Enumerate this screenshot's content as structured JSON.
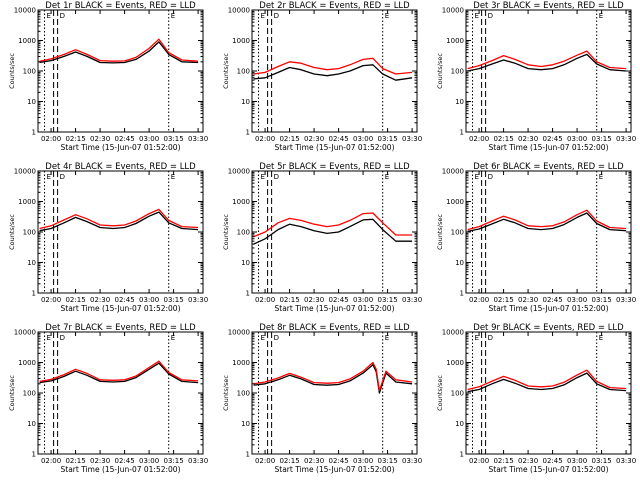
{
  "chart_data": [
    {
      "type": "line",
      "title": "Det 1r BLACK = Events, RED = LLD",
      "xlabel": "Start Time (15-Jun-07 01:52:00)",
      "ylabel": "Counts/sec",
      "yscale": "log",
      "ylim": [
        1,
        10000
      ],
      "x_ticks": [
        "02:00",
        "02:15",
        "02:30",
        "02:45",
        "03:00",
        "03:15",
        "03:30"
      ],
      "y_ticks": [
        "1",
        "10",
        "100",
        "1000",
        "10000"
      ],
      "markers": [
        {
          "label": "E",
          "time": "01:56"
        },
        {
          "label": "D",
          "time": "02:04"
        },
        {
          "label": "E",
          "time": "03:12"
        }
      ],
      "x": [
        "01:53",
        "02:00",
        "02:08",
        "02:15",
        "02:22",
        "02:30",
        "02:38",
        "02:45",
        "02:52",
        "03:00",
        "03:06",
        "03:12",
        "03:20",
        "03:30"
      ],
      "series": [
        {
          "name": "Events",
          "color": "#000000",
          "values": [
            190,
            220,
            300,
            420,
            300,
            190,
            185,
            190,
            240,
            450,
            900,
            350,
            200,
            190
          ]
        },
        {
          "name": "LLD",
          "color": "#ff0000",
          "values": [
            210,
            250,
            350,
            500,
            350,
            220,
            210,
            215,
            280,
            550,
            1100,
            400,
            230,
            210
          ]
        }
      ]
    },
    {
      "type": "line",
      "title": "Det 2r BLACK = Events, RED = LLD",
      "xlabel": "Start Time (15-Jun-07 01:52:00)",
      "ylabel": "Counts/sec",
      "yscale": "log",
      "ylim": [
        1,
        10000
      ],
      "x_ticks": [
        "02:00",
        "02:15",
        "02:30",
        "02:45",
        "03:00",
        "03:15",
        "03:30"
      ],
      "y_ticks": [
        "1",
        "10",
        "100",
        "1000",
        "10000"
      ],
      "markers": [
        {
          "label": "E",
          "time": "01:56"
        },
        {
          "label": "D",
          "time": "02:04"
        },
        {
          "label": "E",
          "time": "03:12"
        }
      ],
      "x": [
        "01:53",
        "02:00",
        "02:08",
        "02:15",
        "02:22",
        "02:30",
        "02:38",
        "02:45",
        "02:52",
        "03:00",
        "03:06",
        "03:12",
        "03:20",
        "03:30"
      ],
      "series": [
        {
          "name": "Events",
          "color": "#000000",
          "values": [
            55,
            60,
            90,
            130,
            110,
            80,
            70,
            80,
            100,
            150,
            160,
            80,
            50,
            60
          ]
        },
        {
          "name": "LLD",
          "color": "#ff0000",
          "values": [
            80,
            90,
            140,
            200,
            180,
            130,
            110,
            120,
            160,
            240,
            260,
            120,
            80,
            90
          ]
        }
      ]
    },
    {
      "type": "line",
      "title": "Det 3r BLACK = Events, RED = LLD",
      "xlabel": "Start Time (15-Jun-07 01:52:00)",
      "ylabel": "Counts/sec",
      "yscale": "log",
      "ylim": [
        1,
        10000
      ],
      "x_ticks": [
        "02:00",
        "02:15",
        "02:30",
        "02:45",
        "03:00",
        "03:15",
        "03:30"
      ],
      "y_ticks": [
        "1",
        "10",
        "100",
        "1000",
        "10000"
      ],
      "markers": [
        {
          "label": "E",
          "time": "01:56"
        },
        {
          "label": "D",
          "time": "02:04"
        },
        {
          "label": "E",
          "time": "03:12"
        }
      ],
      "x": [
        "01:53",
        "02:00",
        "02:08",
        "02:15",
        "02:22",
        "02:30",
        "02:38",
        "02:45",
        "02:52",
        "03:00",
        "03:06",
        "03:12",
        "03:20",
        "03:30"
      ],
      "series": [
        {
          "name": "Events",
          "color": "#000000",
          "values": [
            100,
            120,
            170,
            230,
            180,
            120,
            110,
            120,
            160,
            260,
            350,
            170,
            110,
            100
          ]
        },
        {
          "name": "LLD",
          "color": "#ff0000",
          "values": [
            120,
            150,
            220,
            320,
            240,
            160,
            140,
            160,
            210,
            330,
            450,
            200,
            130,
            120
          ]
        }
      ]
    },
    {
      "type": "line",
      "title": "Det 4r BLACK = Events, RED = LLD",
      "xlabel": "Start Time (15-Jun-07 01:52:00)",
      "ylabel": "Counts/sec",
      "yscale": "log",
      "ylim": [
        1,
        10000
      ],
      "x_ticks": [
        "02:00",
        "02:15",
        "02:30",
        "02:45",
        "03:00",
        "03:15",
        "03:30"
      ],
      "y_ticks": [
        "1",
        "10",
        "100",
        "1000",
        "10000"
      ],
      "markers": [
        {
          "label": "E",
          "time": "01:56"
        },
        {
          "label": "D",
          "time": "02:04"
        },
        {
          "label": "E",
          "time": "03:12"
        }
      ],
      "x": [
        "01:53",
        "02:00",
        "02:08",
        "02:15",
        "02:22",
        "02:30",
        "02:38",
        "02:45",
        "02:52",
        "03:00",
        "03:06",
        "03:12",
        "03:20",
        "03:30"
      ],
      "series": [
        {
          "name": "Events",
          "color": "#000000",
          "values": [
            110,
            130,
            200,
            300,
            220,
            140,
            130,
            140,
            190,
            330,
            450,
            200,
            130,
            120
          ]
        },
        {
          "name": "LLD",
          "color": "#ff0000",
          "values": [
            130,
            160,
            250,
            370,
            270,
            170,
            160,
            170,
            230,
            400,
            550,
            240,
            150,
            140
          ]
        }
      ]
    },
    {
      "type": "line",
      "title": "Det 5r BLACK = Events, RED = LLD",
      "xlabel": "Start Time (15-Jun-07 01:52:00)",
      "ylabel": "Counts/sec",
      "yscale": "log",
      "ylim": [
        1,
        10000
      ],
      "x_ticks": [
        "02:00",
        "02:15",
        "02:30",
        "02:45",
        "03:00",
        "03:15",
        "03:30"
      ],
      "y_ticks": [
        "1",
        "10",
        "100",
        "1000",
        "10000"
      ],
      "markers": [
        {
          "label": "E",
          "time": "01:56"
        },
        {
          "label": "D",
          "time": "02:04"
        },
        {
          "label": "E",
          "time": "03:12"
        }
      ],
      "x": [
        "01:53",
        "02:00",
        "02:08",
        "02:15",
        "02:22",
        "02:30",
        "02:38",
        "02:45",
        "02:52",
        "03:00",
        "03:06",
        "03:12",
        "03:20",
        "03:30"
      ],
      "series": [
        {
          "name": "Events",
          "color": "#000000",
          "values": [
            40,
            60,
            120,
            180,
            150,
            110,
            90,
            100,
            150,
            250,
            260,
            120,
            50,
            50
          ]
        },
        {
          "name": "LLD",
          "color": "#ff0000",
          "values": [
            70,
            100,
            200,
            280,
            240,
            180,
            150,
            170,
            240,
            400,
            420,
            200,
            80,
            80
          ]
        }
      ]
    },
    {
      "type": "line",
      "title": "Det 6r BLACK = Events, RED = LLD",
      "xlabel": "Start Time (15-Jun-07 01:52:00)",
      "ylabel": "Counts/sec",
      "yscale": "log",
      "ylim": [
        1,
        10000
      ],
      "x_ticks": [
        "02:00",
        "02:15",
        "02:30",
        "02:45",
        "03:00",
        "03:15",
        "03:30"
      ],
      "y_ticks": [
        "1",
        "10",
        "100",
        "1000",
        "10000"
      ],
      "markers": [
        {
          "label": "E",
          "time": "01:56"
        },
        {
          "label": "D",
          "time": "02:04"
        },
        {
          "label": "E",
          "time": "03:12"
        }
      ],
      "x": [
        "01:53",
        "02:00",
        "02:08",
        "02:15",
        "02:22",
        "02:30",
        "02:38",
        "02:45",
        "02:52",
        "03:00",
        "03:06",
        "03:12",
        "03:20",
        "03:30"
      ],
      "series": [
        {
          "name": "Events",
          "color": "#000000",
          "values": [
            105,
            125,
            185,
            260,
            200,
            130,
            120,
            130,
            175,
            300,
            420,
            190,
            120,
            110
          ]
        },
        {
          "name": "LLD",
          "color": "#ff0000",
          "values": [
            120,
            150,
            230,
            330,
            250,
            160,
            150,
            160,
            215,
            370,
            520,
            230,
            140,
            130
          ]
        }
      ]
    },
    {
      "type": "line",
      "title": "Det 7r BLACK = Events, RED = LLD",
      "xlabel": "Start Time (15-Jun-07 01:52:00)",
      "ylabel": "Counts/sec",
      "yscale": "log",
      "ylim": [
        1,
        10000
      ],
      "x_ticks": [
        "02:00",
        "02:15",
        "02:30",
        "02:45",
        "03:00",
        "03:15",
        "03:30"
      ],
      "y_ticks": [
        "1",
        "10",
        "100",
        "1000",
        "10000"
      ],
      "markers": [
        {
          "label": "E",
          "time": "01:56"
        },
        {
          "label": "D",
          "time": "02:04"
        },
        {
          "label": "E",
          "time": "03:12"
        }
      ],
      "x": [
        "01:53",
        "02:00",
        "02:08",
        "02:15",
        "02:22",
        "02:30",
        "02:38",
        "02:45",
        "02:52",
        "03:00",
        "03:06",
        "03:12",
        "03:20",
        "03:30"
      ],
      "series": [
        {
          "name": "Events",
          "color": "#000000",
          "values": [
            220,
            250,
            350,
            520,
            380,
            240,
            230,
            240,
            320,
            600,
            950,
            420,
            240,
            220
          ]
        },
        {
          "name": "LLD",
          "color": "#ff0000",
          "values": [
            240,
            280,
            400,
            600,
            440,
            270,
            260,
            270,
            360,
            680,
            1100,
            470,
            270,
            250
          ]
        }
      ]
    },
    {
      "type": "line",
      "title": "Det 8r BLACK = Events, RED = LLD",
      "xlabel": "Start Time (15-Jun-07 01:52:00)",
      "ylabel": "Counts/sec",
      "yscale": "log",
      "ylim": [
        1,
        10000
      ],
      "x_ticks": [
        "02:00",
        "02:15",
        "02:30",
        "02:45",
        "03:00",
        "03:15",
        "03:30"
      ],
      "y_ticks": [
        "1",
        "10",
        "100",
        "1000",
        "10000"
      ],
      "markers": [
        {
          "label": "E",
          "time": "01:56"
        },
        {
          "label": "D",
          "time": "02:04"
        },
        {
          "label": "E",
          "time": "03:12"
        }
      ],
      "x": [
        "01:53",
        "02:00",
        "02:08",
        "02:15",
        "02:22",
        "02:30",
        "02:38",
        "02:45",
        "02:52",
        "03:00",
        "03:06",
        "03:08",
        "03:10",
        "03:14",
        "03:20",
        "03:30"
      ],
      "series": [
        {
          "name": "Events",
          "color": "#000000",
          "values": [
            180,
            200,
            270,
            380,
            290,
            190,
            180,
            190,
            250,
            450,
            850,
            500,
            100,
            450,
            230,
            200
          ]
        },
        {
          "name": "LLD",
          "color": "#ff0000",
          "values": [
            200,
            230,
            310,
            440,
            330,
            220,
            210,
            220,
            290,
            520,
            1000,
            600,
            120,
            520,
            270,
            230
          ]
        }
      ]
    },
    {
      "type": "line",
      "title": "Det 9r BLACK = Events, RED = LLD",
      "xlabel": "Start Time (15-Jun-07 01:52:00)",
      "ylabel": "Counts/sec",
      "yscale": "log",
      "ylim": [
        1,
        10000
      ],
      "x_ticks": [
        "02:00",
        "02:15",
        "02:30",
        "02:45",
        "03:00",
        "03:15",
        "03:30"
      ],
      "y_ticks": [
        "1",
        "10",
        "100",
        "1000",
        "10000"
      ],
      "markers": [
        {
          "label": "E",
          "time": "01:56"
        },
        {
          "label": "D",
          "time": "02:04"
        },
        {
          "label": "E",
          "time": "03:12"
        }
      ],
      "x": [
        "01:53",
        "02:00",
        "02:08",
        "02:15",
        "02:22",
        "02:30",
        "02:38",
        "02:45",
        "02:52",
        "03:00",
        "03:06",
        "03:12",
        "03:20",
        "03:30"
      ],
      "series": [
        {
          "name": "Events",
          "color": "#000000",
          "values": [
            110,
            130,
            200,
            280,
            210,
            140,
            130,
            140,
            185,
            320,
            450,
            200,
            130,
            120
          ]
        },
        {
          "name": "LLD",
          "color": "#ff0000",
          "values": [
            130,
            160,
            245,
            350,
            260,
            170,
            160,
            170,
            225,
            390,
            560,
            240,
            150,
            140
          ]
        }
      ]
    }
  ]
}
